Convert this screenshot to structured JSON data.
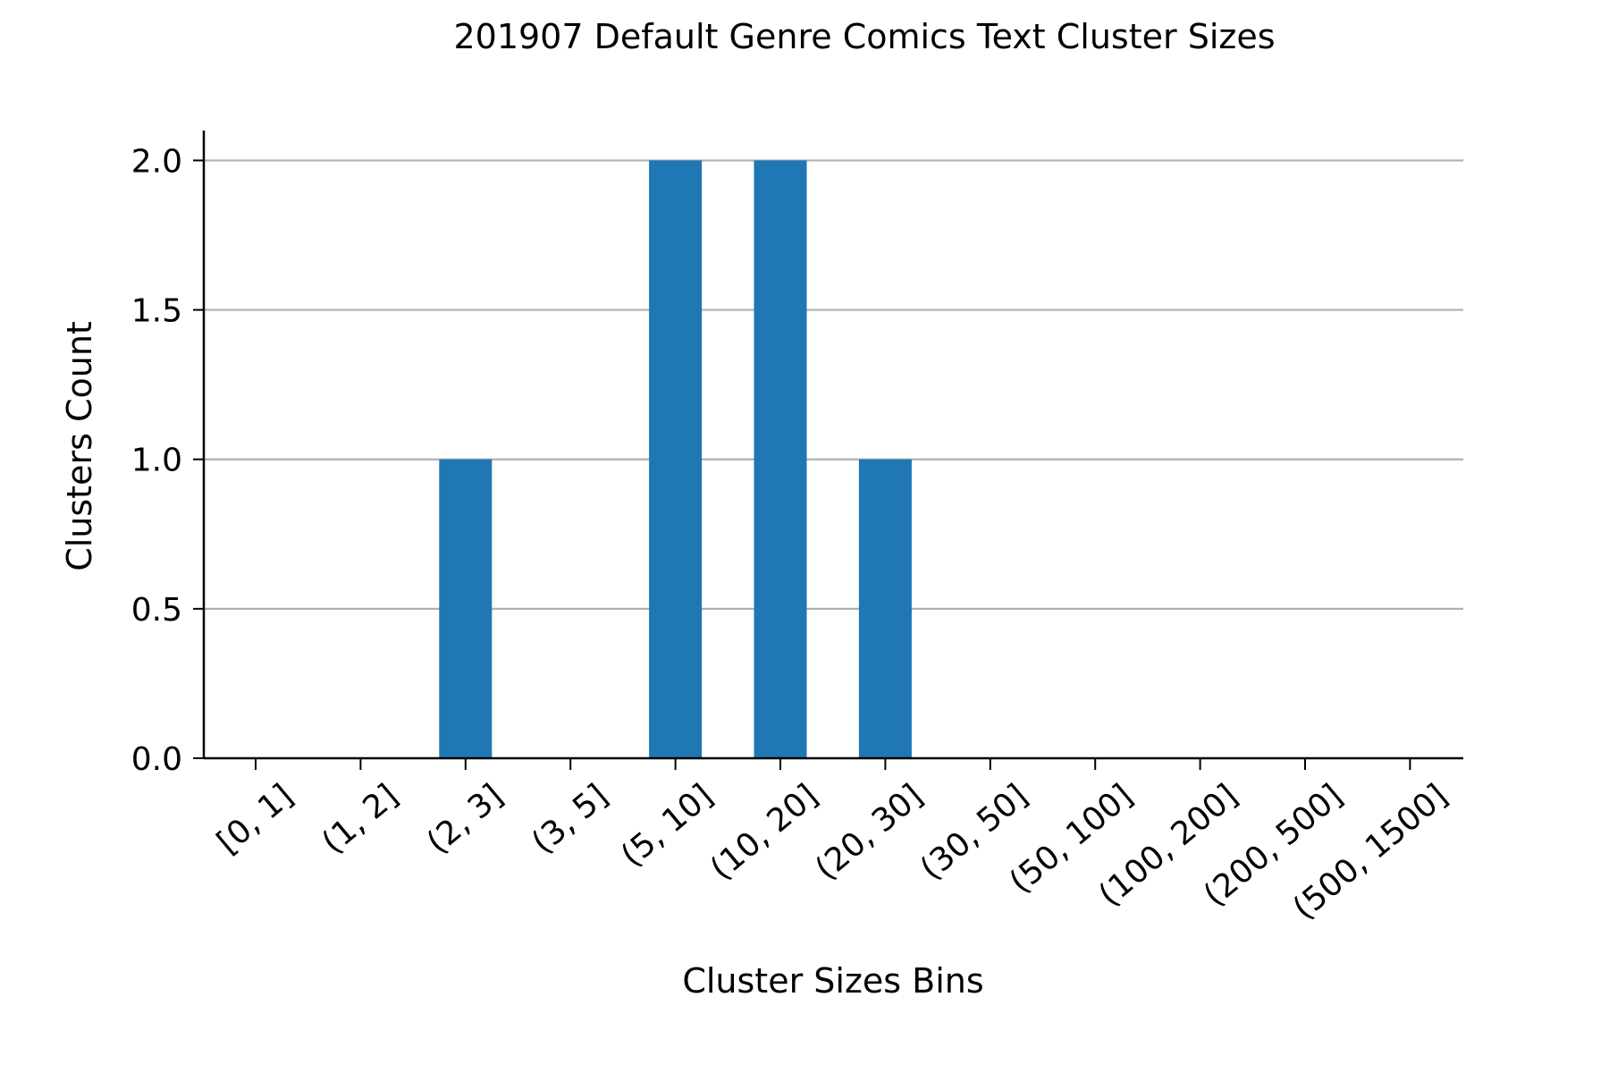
{
  "chart_data": {
    "type": "bar",
    "title": "201907 Default Genre Comics Text Cluster Sizes",
    "xlabel": "Cluster Sizes Bins",
    "ylabel": "Clusters Count",
    "categories": [
      "[0, 1]",
      "(1, 2]",
      "(2, 3]",
      "(3, 5]",
      "(5, 10]",
      "(10, 20]",
      "(20, 30]",
      "(30, 50]",
      "(50, 100]",
      "(100, 200]",
      "(200, 500]",
      "(500, 1500]"
    ],
    "values": [
      0,
      0,
      1,
      0,
      2,
      2,
      1,
      0,
      0,
      0,
      0,
      0
    ],
    "ylim": [
      0,
      2.1
    ],
    "yticks": [
      "0.0",
      "0.5",
      "1.0",
      "1.5",
      "2.0"
    ],
    "grid": "horizontal",
    "bar_color": "#1f77b4",
    "grid_color": "#b0b0b0"
  }
}
